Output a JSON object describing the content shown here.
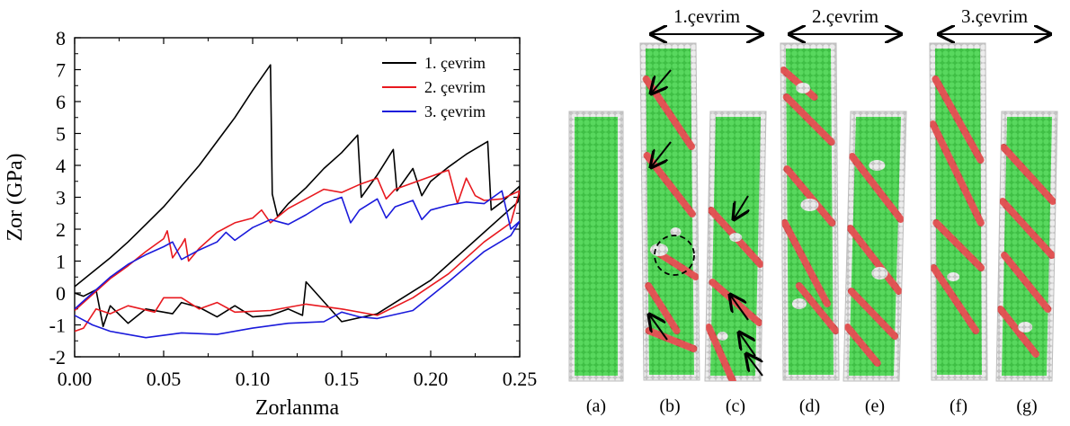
{
  "chart_data": {
    "type": "line",
    "xlabel": "Zorlanma",
    "ylabel": "Zor (GPa)",
    "xlim": [
      0.0,
      0.25
    ],
    "ylim": [
      -2,
      8
    ],
    "xticks": [
      "0.00",
      "0.05",
      "0.10",
      "0.15",
      "0.20",
      "0.25"
    ],
    "yticks": [
      "-2",
      "-1",
      "0",
      "1",
      "2",
      "3",
      "4",
      "5",
      "6",
      "7",
      "8"
    ],
    "grid": false,
    "legend_position": "top-right",
    "series": [
      {
        "name": "1. çevrim",
        "color": "#000000",
        "points": [
          [
            0,
            0.2
          ],
          [
            0.01,
            0.65
          ],
          [
            0.02,
            1.1
          ],
          [
            0.03,
            1.6
          ],
          [
            0.04,
            2.15
          ],
          [
            0.05,
            2.7
          ],
          [
            0.06,
            3.35
          ],
          [
            0.07,
            4.0
          ],
          [
            0.08,
            4.75
          ],
          [
            0.09,
            5.5
          ],
          [
            0.1,
            6.35
          ],
          [
            0.11,
            7.15
          ],
          [
            0.111,
            3.1
          ],
          [
            0.114,
            2.4
          ],
          [
            0.12,
            2.8
          ],
          [
            0.13,
            3.3
          ],
          [
            0.14,
            3.9
          ],
          [
            0.15,
            4.4
          ],
          [
            0.159,
            4.95
          ],
          [
            0.161,
            3.0
          ],
          [
            0.17,
            3.7
          ],
          [
            0.179,
            4.5
          ],
          [
            0.181,
            3.2
          ],
          [
            0.19,
            3.9
          ],
          [
            0.195,
            3.05
          ],
          [
            0.2,
            3.5
          ],
          [
            0.21,
            3.95
          ],
          [
            0.22,
            4.35
          ],
          [
            0.232,
            4.75
          ],
          [
            0.234,
            2.6
          ],
          [
            0.24,
            2.85
          ],
          [
            0.25,
            3.35
          ],
          [
            0.249,
            2.85
          ],
          [
            0.23,
            1.9
          ],
          [
            0.2,
            0.4
          ],
          [
            0.17,
            -0.65
          ],
          [
            0.15,
            -0.9
          ],
          [
            0.13,
            0.35
          ],
          [
            0.128,
            -0.7
          ],
          [
            0.12,
            -0.5
          ],
          [
            0.11,
            -0.7
          ],
          [
            0.1,
            -0.75
          ],
          [
            0.09,
            -0.4
          ],
          [
            0.08,
            -0.75
          ],
          [
            0.07,
            -0.45
          ],
          [
            0.06,
            -0.3
          ],
          [
            0.055,
            -0.65
          ],
          [
            0.04,
            -0.5
          ],
          [
            0.03,
            -0.95
          ],
          [
            0.02,
            -0.4
          ],
          [
            0.016,
            -1.05
          ],
          [
            0.012,
            0.1
          ],
          [
            0.005,
            -0.1
          ],
          [
            0,
            0.0
          ]
        ]
      },
      {
        "name": "2. çevrim",
        "color": "#e8191f",
        "points": [
          [
            0,
            -0.55
          ],
          [
            0.01,
            -0.05
          ],
          [
            0.02,
            0.45
          ],
          [
            0.03,
            0.85
          ],
          [
            0.04,
            1.3
          ],
          [
            0.05,
            1.7
          ],
          [
            0.052,
            1.95
          ],
          [
            0.055,
            1.1
          ],
          [
            0.06,
            1.5
          ],
          [
            0.062,
            1.7
          ],
          [
            0.064,
            1.0
          ],
          [
            0.07,
            1.4
          ],
          [
            0.08,
            1.9
          ],
          [
            0.09,
            2.2
          ],
          [
            0.1,
            2.35
          ],
          [
            0.105,
            2.6
          ],
          [
            0.11,
            2.2
          ],
          [
            0.12,
            2.65
          ],
          [
            0.13,
            2.95
          ],
          [
            0.14,
            3.25
          ],
          [
            0.15,
            3.15
          ],
          [
            0.16,
            3.4
          ],
          [
            0.17,
            3.6
          ],
          [
            0.175,
            2.95
          ],
          [
            0.18,
            3.25
          ],
          [
            0.19,
            3.45
          ],
          [
            0.2,
            3.65
          ],
          [
            0.21,
            3.85
          ],
          [
            0.215,
            2.8
          ],
          [
            0.22,
            3.6
          ],
          [
            0.225,
            3.05
          ],
          [
            0.23,
            2.9
          ],
          [
            0.24,
            2.95
          ],
          [
            0.25,
            3.2
          ],
          [
            0.245,
            2.2
          ],
          [
            0.23,
            1.6
          ],
          [
            0.21,
            0.6
          ],
          [
            0.19,
            -0.15
          ],
          [
            0.17,
            -0.7
          ],
          [
            0.15,
            -0.5
          ],
          [
            0.13,
            -0.35
          ],
          [
            0.11,
            -0.55
          ],
          [
            0.09,
            -0.6
          ],
          [
            0.08,
            -0.3
          ],
          [
            0.07,
            -0.5
          ],
          [
            0.06,
            -0.15
          ],
          [
            0.05,
            -0.15
          ],
          [
            0.045,
            -0.6
          ],
          [
            0.03,
            -0.4
          ],
          [
            0.02,
            -0.65
          ],
          [
            0.012,
            -0.5
          ],
          [
            0.005,
            -1.1
          ],
          [
            0,
            -1.2
          ]
        ]
      },
      {
        "name": "3. çevrim",
        "color": "#1a1adb",
        "points": [
          [
            0,
            -0.5
          ],
          [
            0.01,
            0.0
          ],
          [
            0.02,
            0.5
          ],
          [
            0.03,
            0.9
          ],
          [
            0.04,
            1.2
          ],
          [
            0.05,
            1.45
          ],
          [
            0.055,
            1.6
          ],
          [
            0.06,
            1.05
          ],
          [
            0.07,
            1.35
          ],
          [
            0.08,
            1.6
          ],
          [
            0.085,
            1.9
          ],
          [
            0.09,
            1.65
          ],
          [
            0.1,
            2.05
          ],
          [
            0.11,
            2.3
          ],
          [
            0.12,
            2.15
          ],
          [
            0.13,
            2.45
          ],
          [
            0.14,
            2.8
          ],
          [
            0.15,
            3.0
          ],
          [
            0.155,
            2.2
          ],
          [
            0.16,
            2.6
          ],
          [
            0.17,
            2.95
          ],
          [
            0.175,
            2.35
          ],
          [
            0.18,
            2.7
          ],
          [
            0.19,
            2.9
          ],
          [
            0.195,
            2.3
          ],
          [
            0.2,
            2.6
          ],
          [
            0.21,
            2.75
          ],
          [
            0.22,
            2.85
          ],
          [
            0.23,
            2.8
          ],
          [
            0.24,
            3.2
          ],
          [
            0.245,
            2.0
          ],
          [
            0.25,
            2.25
          ],
          [
            0.245,
            1.8
          ],
          [
            0.23,
            1.3
          ],
          [
            0.21,
            0.35
          ],
          [
            0.19,
            -0.55
          ],
          [
            0.17,
            -0.8
          ],
          [
            0.16,
            -0.75
          ],
          [
            0.15,
            -0.6
          ],
          [
            0.14,
            -0.9
          ],
          [
            0.12,
            -0.95
          ],
          [
            0.1,
            -1.1
          ],
          [
            0.08,
            -1.3
          ],
          [
            0.06,
            -1.25
          ],
          [
            0.04,
            -1.4
          ],
          [
            0.02,
            -1.2
          ],
          [
            0.01,
            -1.0
          ],
          [
            0,
            -0.7
          ]
        ]
      }
    ]
  },
  "figure": {
    "cycles": [
      {
        "label": "1.çevrim",
        "panels": [
          "b",
          "c"
        ]
      },
      {
        "label": "2.çevrim",
        "panels": [
          "d",
          "e"
        ]
      },
      {
        "label": "3.çevrim",
        "panels": [
          "f",
          "g"
        ]
      }
    ],
    "panels": [
      "(a)",
      "(b)",
      "(c)",
      "(d)",
      "(e)",
      "(f)",
      "(g)"
    ],
    "colors": {
      "fcc": "#44d04a",
      "hcp": "#e05555",
      "other": "#d8d8d8"
    }
  }
}
